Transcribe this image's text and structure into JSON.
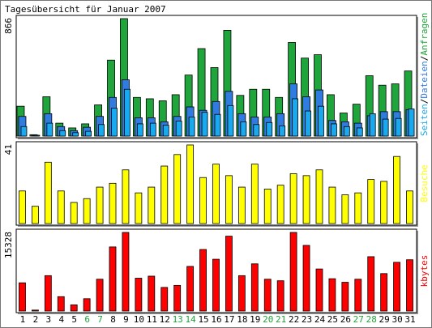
{
  "chart_data": {
    "type": "bar",
    "title": "Tagesübersicht für Januar 2007",
    "categories": [
      "1",
      "2",
      "3",
      "4",
      "5",
      "6",
      "7",
      "8",
      "9",
      "10",
      "11",
      "12",
      "13",
      "14",
      "15",
      "16",
      "17",
      "18",
      "19",
      "20",
      "21",
      "22",
      "23",
      "24",
      "25",
      "26",
      "27",
      "28",
      "29",
      "30",
      "31"
    ],
    "weekend_days": [
      "6",
      "7",
      "13",
      "14",
      "20",
      "21",
      "27",
      "28"
    ],
    "panels": [
      {
        "id": "requests",
        "ymax_label": "866",
        "ymax": 866,
        "legend": [
          "Seiten",
          "Dateien",
          "Anfragen"
        ],
        "legend_separator": "/",
        "series": [
          {
            "name": "Anfragen",
            "color": "#1fa53b",
            "values": [
              220,
              10,
              290,
              95,
              60,
              90,
              230,
              560,
              866,
              285,
              275,
              260,
              305,
              450,
              645,
              505,
              780,
              300,
              345,
              345,
              285,
              690,
              575,
              600,
              305,
              170,
              235,
              445,
              375,
              385,
              480
            ]
          },
          {
            "name": "Dateien",
            "color": "#2f7be0",
            "values": [
              145,
              6,
              165,
              70,
              40,
              65,
              145,
              285,
              415,
              135,
              135,
              105,
              145,
              215,
              190,
              255,
              330,
              165,
              140,
              140,
              165,
              385,
              290,
              340,
              115,
              105,
              95,
              150,
              180,
              180,
              195
            ]
          },
          {
            "name": "Seiten",
            "color": "#19a9ee",
            "values": [
              70,
              3,
              95,
              40,
              25,
              35,
              85,
              205,
              345,
              90,
              95,
              80,
              110,
              140,
              175,
              160,
              225,
              105,
              85,
              100,
              75,
              275,
              185,
              220,
              90,
              70,
              60,
              165,
              125,
              130,
              200
            ]
          }
        ]
      },
      {
        "id": "visits",
        "ymax_label": "41",
        "ymax": 41,
        "legend": [
          "Besuche"
        ],
        "series": [
          {
            "name": "Besuche",
            "color": "#ffff00",
            "values": [
              17,
              9,
              32,
              17,
              11,
              13,
              19,
              21,
              28,
              16,
              19,
              30,
              36,
              41,
              24,
              31,
              25,
              19,
              31,
              18,
              20,
              26,
              25,
              28,
              19,
              15,
              16,
              23,
              22,
              35,
              17
            ]
          }
        ]
      },
      {
        "id": "bytes",
        "ymax_label": "15328",
        "ymax": 15328,
        "legend": [
          "kbytes"
        ],
        "series": [
          {
            "name": "kbytes",
            "color": "#ff0000",
            "values": [
              5500,
              180,
              6900,
              2800,
              1200,
              2400,
              6200,
              12500,
              15328,
              6400,
              6800,
              4600,
              5000,
              8700,
              12000,
              10100,
              14600,
              6900,
              9200,
              6200,
              5900,
              15328,
              12800,
              8200,
              6300,
              5600,
              6200,
              10600,
              7300,
              9500,
              10000
            ]
          }
        ]
      }
    ]
  }
}
